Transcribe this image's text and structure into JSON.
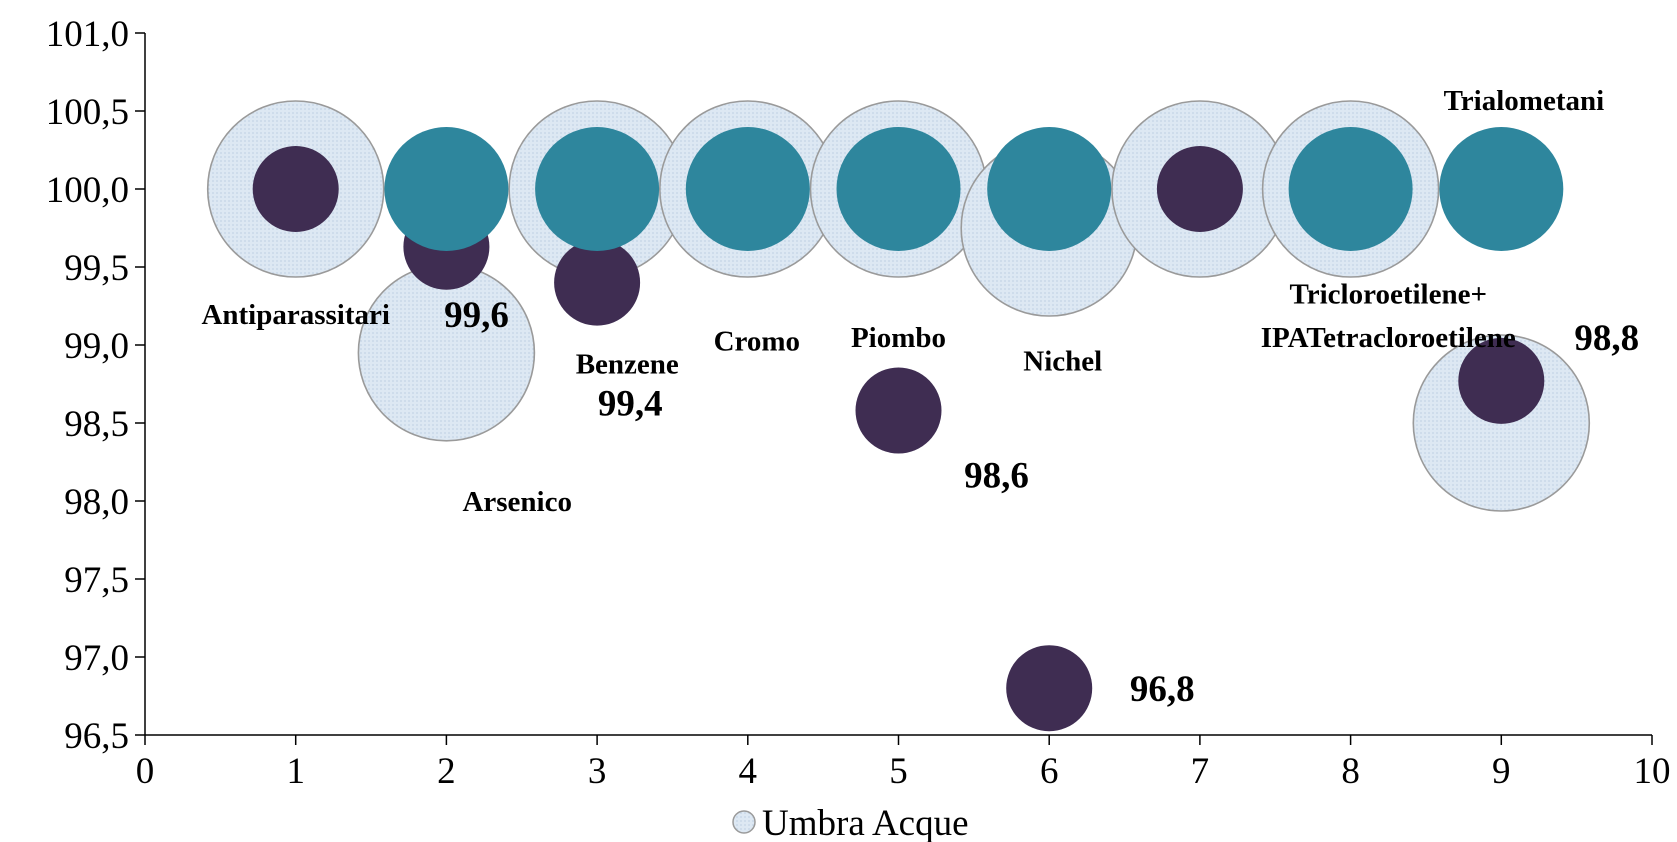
{
  "chart_data": {
    "type": "scatter",
    "subtype": "bubble",
    "xlim": [
      0,
      10
    ],
    "ylim": [
      96.5,
      101.0
    ],
    "x_ticks": [
      0,
      1,
      2,
      3,
      4,
      5,
      6,
      7,
      8,
      9,
      10
    ],
    "y_ticks": [
      96.5,
      97.0,
      97.5,
      98.0,
      98.5,
      99.0,
      99.5,
      100.0,
      100.5,
      101.0
    ],
    "y_tick_labels": [
      "96,5",
      "97,0",
      "97,5",
      "98,0",
      "98,5",
      "99,0",
      "99,5",
      "100,0",
      "100,5",
      "101,0"
    ],
    "x_tick_labels": [
      "0",
      "1",
      "2",
      "3",
      "4",
      "5",
      "6",
      "7",
      "8",
      "9",
      "10"
    ],
    "grid": false,
    "legend": {
      "position": "bottom",
      "entries": [
        "Umbra Acque"
      ]
    },
    "colors": {
      "light_bubble": "#dde8f3",
      "light_bubble_stroke": "#9a9a9a",
      "dark_bubble": "#3f2d52",
      "teal_bubble": "#2e869d"
    },
    "series": [
      {
        "name": "Umbra Acque",
        "style": "light_bubble",
        "points": [
          {
            "x": 1,
            "y": 100.0
          },
          {
            "x": 2,
            "y": 98.95
          },
          {
            "x": 3,
            "y": 100.0
          },
          {
            "x": 4,
            "y": 100.0
          },
          {
            "x": 5,
            "y": 100.0
          },
          {
            "x": 6,
            "y": 99.75
          },
          {
            "x": 7,
            "y": 100.0
          },
          {
            "x": 8,
            "y": 100.0
          },
          {
            "x": 9,
            "y": 98.5
          }
        ]
      },
      {
        "style": "dark_bubble",
        "points": [
          {
            "x": 1,
            "y": 100.0
          },
          {
            "x": 2,
            "y": 99.63
          },
          {
            "x": 3,
            "y": 99.4
          },
          {
            "x": 5,
            "y": 98.58
          },
          {
            "x": 6,
            "y": 96.8
          },
          {
            "x": 7,
            "y": 100.0
          },
          {
            "x": 9,
            "y": 98.77
          }
        ]
      },
      {
        "style": "teal_bubble",
        "points": [
          {
            "x": 2,
            "y": 100.0
          },
          {
            "x": 3,
            "y": 100.0
          },
          {
            "x": 4,
            "y": 100.0
          },
          {
            "x": 5,
            "y": 100.0
          },
          {
            "x": 6,
            "y": 100.0
          },
          {
            "x": 8,
            "y": 100.0
          },
          {
            "x": 9,
            "y": 100.0
          }
        ]
      }
    ],
    "category_labels": [
      {
        "text": "Antiparassitari",
        "x": 1.0,
        "y": 99.2
      },
      {
        "text": "Arsenico",
        "x": 2.47,
        "y": 98.0
      },
      {
        "text": "Benzene",
        "x": 3.2,
        "y": 98.88
      },
      {
        "text": "Cromo",
        "x": 4.06,
        "y": 99.03
      },
      {
        "text": "Piombo",
        "x": 5.0,
        "y": 99.05
      },
      {
        "text": "Nichel",
        "x": 6.09,
        "y": 98.9
      },
      {
        "text": "Tricloroetilene+",
        "x": 8.25,
        "y": 99.33
      },
      {
        "text": "IPATetracloroetilene",
        "x": 8.25,
        "y": 99.05
      },
      {
        "text": "Trialometani",
        "x": 9.15,
        "y": 100.57
      }
    ],
    "value_labels": [
      {
        "text": "99,6",
        "x": 2.2,
        "y": 99.2
      },
      {
        "text": "99,4",
        "x": 3.22,
        "y": 98.63
      },
      {
        "text": "98,6",
        "x": 5.65,
        "y": 98.17
      },
      {
        "text": "96,8",
        "x": 6.75,
        "y": 96.8
      },
      {
        "text": "98,8",
        "x": 9.7,
        "y": 99.05
      }
    ]
  }
}
